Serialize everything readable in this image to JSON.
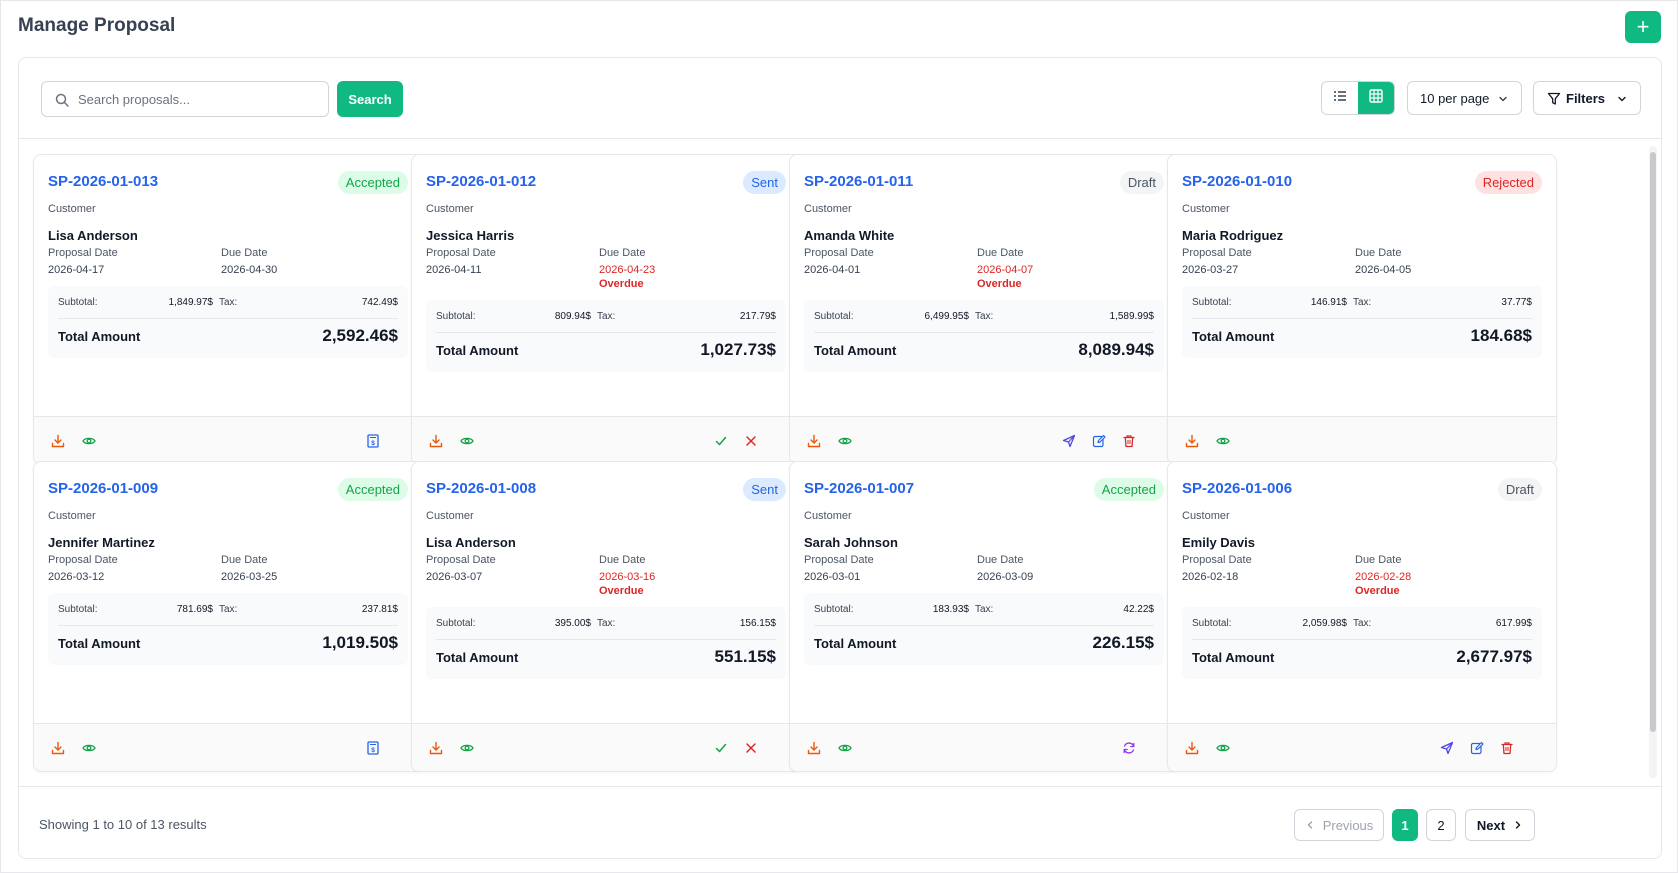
{
  "header": {
    "title": "Manage Proposal",
    "add_label": "+"
  },
  "toolbar": {
    "search_placeholder": "Search proposals...",
    "search_label": "Search",
    "per_page": "10 per page",
    "filters_label": "Filters"
  },
  "labels": {
    "customer": "Customer",
    "proposal_date": "Proposal Date",
    "due_date": "Due Date",
    "subtotal": "Subtotal:",
    "tax": "Tax:",
    "total_amount": "Total Amount",
    "overdue": "Overdue"
  },
  "proposals": [
    {
      "number": "SP-2026-01-013",
      "status": "Accepted",
      "customer": "Lisa Anderson",
      "proposal_date": "2026-04-17",
      "due_date": "2026-04-30",
      "overdue": false,
      "subtotal": "1,849.97$",
      "tax": "742.49$",
      "total": "2,592.46$",
      "actions": [
        "download-icon",
        "view-icon",
        "invoice-icon"
      ]
    },
    {
      "number": "SP-2026-01-012",
      "status": "Sent",
      "customer": "Jessica Harris",
      "proposal_date": "2026-04-11",
      "due_date": "2026-04-23",
      "overdue": true,
      "subtotal": "809.94$",
      "tax": "217.79$",
      "total": "1,027.73$",
      "actions": [
        "download-icon",
        "view-icon",
        "accept-icon",
        "reject-icon"
      ]
    },
    {
      "number": "SP-2026-01-011",
      "status": "Draft",
      "customer": "Amanda White",
      "proposal_date": "2026-04-01",
      "due_date": "2026-04-07",
      "overdue": true,
      "subtotal": "6,499.95$",
      "tax": "1,589.99$",
      "total": "8,089.94$",
      "actions": [
        "download-icon",
        "view-icon",
        "send-icon",
        "edit-icon",
        "delete-icon"
      ]
    },
    {
      "number": "SP-2026-01-010",
      "status": "Rejected",
      "customer": "Maria Rodriguez",
      "proposal_date": "2026-03-27",
      "due_date": "2026-04-05",
      "overdue": false,
      "subtotal": "146.91$",
      "tax": "37.77$",
      "total": "184.68$",
      "actions": [
        "download-icon",
        "view-icon"
      ]
    },
    {
      "number": "SP-2026-01-009",
      "status": "Accepted",
      "customer": "Jennifer Martinez",
      "proposal_date": "2026-03-12",
      "due_date": "2026-03-25",
      "overdue": false,
      "subtotal": "781.69$",
      "tax": "237.81$",
      "total": "1,019.50$",
      "actions": [
        "download-icon",
        "view-icon",
        "invoice-icon"
      ]
    },
    {
      "number": "SP-2026-01-008",
      "status": "Sent",
      "customer": "Lisa Anderson",
      "proposal_date": "2026-03-07",
      "due_date": "2026-03-16",
      "overdue": true,
      "subtotal": "395.00$",
      "tax": "156.15$",
      "total": "551.15$",
      "actions": [
        "download-icon",
        "view-icon",
        "accept-icon",
        "reject-icon"
      ]
    },
    {
      "number": "SP-2026-01-007",
      "status": "Accepted",
      "customer": "Sarah Johnson",
      "proposal_date": "2026-03-01",
      "due_date": "2026-03-09",
      "overdue": false,
      "subtotal": "183.93$",
      "tax": "42.22$",
      "total": "226.15$",
      "actions": [
        "download-icon",
        "view-icon",
        "refresh-icon"
      ]
    },
    {
      "number": "SP-2026-01-006",
      "status": "Draft",
      "customer": "Emily Davis",
      "proposal_date": "2026-02-18",
      "due_date": "2026-02-28",
      "overdue": true,
      "subtotal": "2,059.98$",
      "tax": "617.99$",
      "total": "2,677.97$",
      "actions": [
        "download-icon",
        "view-icon",
        "send-icon",
        "edit-icon",
        "delete-icon"
      ]
    }
  ],
  "pagination": {
    "showing": "Showing 1 to 10 of 13 results",
    "previous": "Previous",
    "pages": [
      "1",
      "2"
    ],
    "current": "1",
    "next": "Next"
  },
  "colors": {
    "primary": "#10b981",
    "link": "#2563eb",
    "overdue": "#dc2626",
    "download": "#ea580c",
    "view": "#16a34a",
    "send": "#4f46e5",
    "edit": "#2563eb",
    "delete": "#dc2626",
    "refresh": "#9333ea"
  }
}
